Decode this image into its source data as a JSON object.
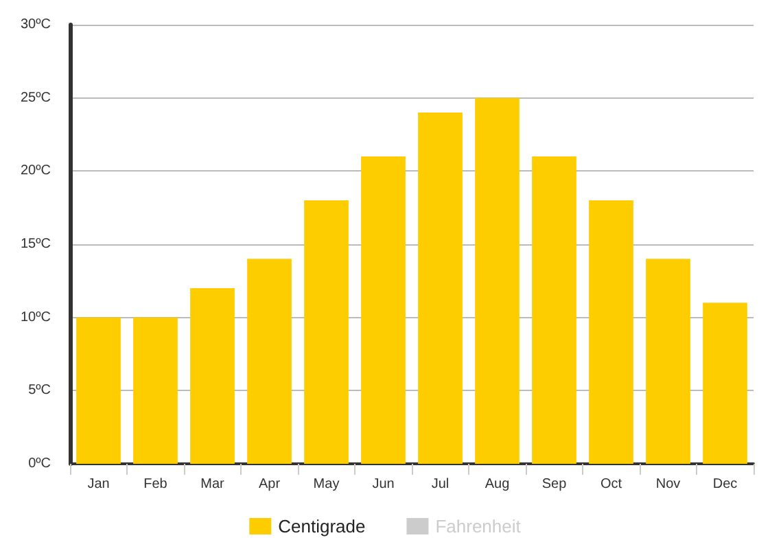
{
  "chart_data": {
    "type": "bar",
    "categories": [
      "Jan",
      "Feb",
      "Mar",
      "Apr",
      "May",
      "Jun",
      "Jul",
      "Aug",
      "Sep",
      "Oct",
      "Nov",
      "Dec"
    ],
    "series": [
      {
        "name": "Centigrade",
        "color": "#fecd00",
        "values": [
          10,
          10,
          12,
          14,
          18,
          21,
          24,
          25,
          21,
          18,
          14,
          11
        ]
      },
      {
        "name": "Fahrenheit",
        "color": "#cccccc",
        "values": [
          null,
          null,
          null,
          null,
          null,
          null,
          null,
          null,
          null,
          null,
          null,
          null
        ]
      }
    ],
    "ylim": [
      0,
      30
    ],
    "yticks": [
      {
        "value": 0,
        "label": "0ºC"
      },
      {
        "value": 5,
        "label": "5ºC"
      },
      {
        "value": 10,
        "label": "10ºC"
      },
      {
        "value": 15,
        "label": "15ºC"
      },
      {
        "value": 20,
        "label": "20ºC"
      },
      {
        "value": 25,
        "label": "25ºC"
      },
      {
        "value": 30,
        "label": "30ºC"
      }
    ],
    "grid": "y",
    "legend": "bottom"
  }
}
